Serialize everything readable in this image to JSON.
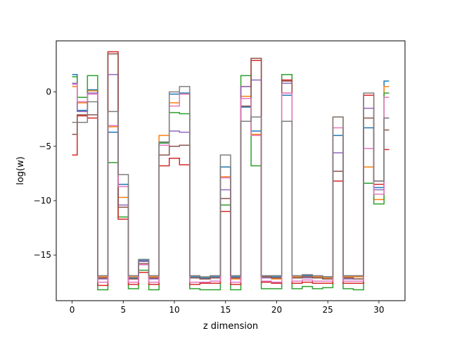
{
  "chart_data": {
    "type": "line",
    "drawstyle": "steps-mid",
    "title": "",
    "xlabel": "z dimension",
    "ylabel": "log(w)",
    "xlim": [
      -1.55,
      32.55
    ],
    "ylim": [
      -19.2,
      4.7
    ],
    "xticks": [
      0,
      5,
      10,
      15,
      20,
      25,
      30
    ],
    "yticks": [
      0,
      -5,
      -10,
      -15
    ],
    "ytick_labels": [
      "0",
      "−5",
      "−10",
      "−15"
    ],
    "grid": false,
    "legend": "none",
    "x": [
      0,
      1,
      2,
      3,
      4,
      5,
      6,
      7,
      8,
      9,
      10,
      11,
      12,
      13,
      14,
      15,
      16,
      17,
      18,
      19,
      20,
      21,
      22,
      23,
      24,
      25,
      26,
      27,
      28,
      29,
      30,
      31
    ],
    "series": [
      {
        "color": "#1f77b4",
        "values": [
          1.6,
          -1.7,
          0.2,
          -17.1,
          -3.7,
          -8.5,
          -17.1,
          -15.5,
          -17.1,
          -4.7,
          -0.2,
          -0.1,
          -17.0,
          -17.1,
          -17.0,
          -6.9,
          -17.0,
          -1.4,
          -3.6,
          -17.0,
          -17.0,
          -0.3,
          -17.0,
          -16.9,
          -17.0,
          -17.0,
          -4.0,
          -17.0,
          -17.0,
          -3.3,
          -8.8,
          1.0
        ]
      },
      {
        "color": "#ff7f0e",
        "values": [
          0.5,
          -1.0,
          0.1,
          -17.0,
          -3.2,
          -9.7,
          -17.0,
          -15.6,
          -17.0,
          -4.0,
          -1.0,
          -0.2,
          -17.1,
          -17.2,
          -17.1,
          -7.8,
          -17.2,
          -0.4,
          -3.9,
          -17.0,
          -17.2,
          -0.1,
          -17.0,
          -17.0,
          -17.0,
          -17.1,
          -2.3,
          -17.0,
          -17.0,
          -6.9,
          -9.9,
          0.5
        ]
      },
      {
        "color": "#2ca02c",
        "values": [
          1.4,
          -0.5,
          1.5,
          -18.2,
          -6.5,
          -11.5,
          -18.1,
          -16.4,
          -18.2,
          -4.7,
          -1.9,
          -2.0,
          -18.1,
          -18.2,
          -18.2,
          -10.4,
          -18.2,
          1.5,
          -6.8,
          -18.1,
          -18.1,
          1.6,
          -18.1,
          -17.9,
          -18.1,
          -18.0,
          -7.3,
          -18.1,
          -18.2,
          -8.4,
          -10.3,
          -0.1
        ]
      },
      {
        "color": "#d62728",
        "values": [
          -5.8,
          -2.2,
          -2.4,
          -17.8,
          3.7,
          -11.7,
          -17.7,
          -16.6,
          -17.7,
          -6.8,
          -6.1,
          -6.7,
          -17.7,
          -17.6,
          -17.6,
          -11.0,
          -17.7,
          0.5,
          2.9,
          -17.5,
          -17.6,
          1.1,
          -17.6,
          -17.5,
          -17.6,
          -17.6,
          -8.2,
          -17.6,
          -17.6,
          -0.3,
          -8.5,
          -5.3
        ]
      },
      {
        "color": "#9467bd",
        "values": [
          0.8,
          -1.8,
          -0.1,
          -17.2,
          1.6,
          -10.4,
          -17.2,
          -15.6,
          -17.2,
          -4.9,
          -3.6,
          -3.7,
          -17.1,
          -17.2,
          -17.1,
          -9.0,
          -17.1,
          0.5,
          1.1,
          -17.1,
          -17.1,
          0.8,
          -17.1,
          -17.1,
          -17.1,
          -17.2,
          -5.6,
          -17.2,
          -17.2,
          -1.5,
          -9.0,
          -2.4
        ]
      },
      {
        "color": "#8c564b",
        "values": [
          -3.9,
          -2.1,
          -2.1,
          -17.1,
          3.5,
          -10.6,
          -17.2,
          -15.8,
          -17.1,
          -5.8,
          -5.0,
          -4.9,
          -17.1,
          -17.2,
          -17.1,
          -9.8,
          -17.1,
          -1.3,
          3.1,
          -17.0,
          -17.1,
          1.0,
          -17.1,
          -17.0,
          -17.1,
          -17.2,
          -7.3,
          -17.1,
          -17.2,
          -2.4,
          -8.2,
          -3.5
        ]
      },
      {
        "color": "#e377c2",
        "values": [
          0.7,
          -0.9,
          -0.2,
          -17.5,
          -3.1,
          -8.7,
          -17.5,
          -15.9,
          -17.5,
          -4.9,
          -1.3,
          -0.2,
          -17.5,
          -17.5,
          -17.4,
          -7.9,
          -17.5,
          -0.6,
          -4.0,
          -17.4,
          -17.5,
          -0.1,
          -17.4,
          -17.3,
          -17.4,
          -17.4,
          -3.3,
          -17.4,
          -17.4,
          -5.2,
          -9.4,
          -0.5
        ]
      },
      {
        "color": "#7f7f7f",
        "values": [
          -2.8,
          -2.8,
          -0.9,
          -16.9,
          -1.8,
          -7.6,
          -16.9,
          -15.4,
          -16.9,
          -4.6,
          0.0,
          0.5,
          -16.9,
          -17.0,
          -16.9,
          -5.8,
          -16.9,
          -2.7,
          -2.3,
          -16.9,
          -16.9,
          -2.7,
          -16.9,
          -16.8,
          -16.9,
          -17.0,
          -2.3,
          -16.9,
          -16.9,
          -0.1,
          -8.2,
          -2.4
        ]
      }
    ]
  }
}
